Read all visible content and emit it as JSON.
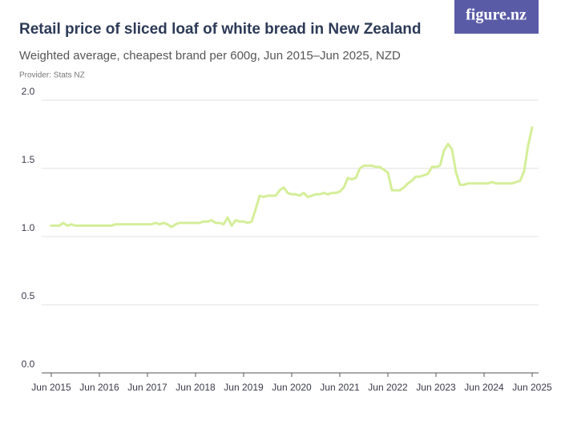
{
  "logo": "figure.nz",
  "chart_data": {
    "type": "line",
    "title": "Retail price of sliced loaf of white bread in New Zealand",
    "subtitle": "Weighted average, cheapest brand per 600g, Jun 2015–Jun 2025, NZD",
    "provider": "Provider: Stats NZ",
    "color": "#d4ee98",
    "grid": true,
    "ylim": [
      0,
      2
    ],
    "yticks": [
      {
        "value": 0,
        "label": "0.0"
      },
      0.5,
      {
        "value": 1,
        "label": "1.0"
      },
      1.5,
      {
        "value": 2,
        "label": "2.0"
      }
    ],
    "categories": [
      "Jun 2015",
      null,
      null,
      null,
      null,
      null,
      null,
      null,
      null,
      null,
      null,
      null,
      "Jun 2016",
      null,
      null,
      null,
      null,
      null,
      null,
      null,
      null,
      null,
      null,
      null,
      "Jun 2017",
      null,
      null,
      null,
      null,
      null,
      null,
      null,
      null,
      null,
      null,
      null,
      "Jun 2018",
      null,
      null,
      null,
      null,
      null,
      null,
      null,
      null,
      null,
      null,
      null,
      "Jun 2019",
      null,
      null,
      null,
      null,
      null,
      null,
      null,
      null,
      null,
      null,
      null,
      "Jun 2020",
      null,
      null,
      null,
      null,
      null,
      null,
      null,
      null,
      null,
      null,
      null,
      "Jun 2021",
      null,
      null,
      null,
      null,
      null,
      null,
      null,
      null,
      null,
      null,
      null,
      "Jun 2022",
      null,
      null,
      null,
      null,
      null,
      null,
      null,
      null,
      null,
      null,
      null,
      "Jun 2023",
      null,
      null,
      null,
      null,
      null,
      null,
      null,
      null,
      null,
      null,
      null,
      "Jun 2024",
      null,
      null,
      null,
      null,
      null,
      null,
      null,
      null,
      null,
      null,
      null,
      "Jun 2025"
    ],
    "values": [
      1.08,
      1.08,
      1.08,
      1.1,
      1.08,
      1.09,
      1.08,
      1.08,
      1.08,
      1.08,
      1.08,
      1.08,
      1.08,
      1.08,
      1.08,
      1.08,
      1.09,
      1.09,
      1.09,
      1.09,
      1.09,
      1.09,
      1.09,
      1.09,
      1.09,
      1.09,
      1.1,
      1.09,
      1.1,
      1.09,
      1.07,
      1.09,
      1.1,
      1.1,
      1.1,
      1.1,
      1.1,
      1.1,
      1.11,
      1.11,
      1.12,
      1.1,
      1.1,
      1.09,
      1.14,
      1.08,
      1.12,
      1.11,
      1.11,
      1.1,
      1.11,
      1.2,
      1.3,
      1.29,
      1.3,
      1.3,
      1.3,
      1.34,
      1.36,
      1.32,
      1.31,
      1.31,
      1.3,
      1.32,
      1.29,
      1.3,
      1.31,
      1.31,
      1.32,
      1.31,
      1.32,
      1.32,
      1.33,
      1.36,
      1.43,
      1.42,
      1.43,
      1.5,
      1.52,
      1.52,
      1.52,
      1.51,
      1.51,
      1.49,
      1.47,
      1.34,
      1.34,
      1.34,
      1.36,
      1.39,
      1.41,
      1.44,
      1.44,
      1.45,
      1.46,
      1.51,
      1.51,
      1.52,
      1.63,
      1.68,
      1.64,
      1.47,
      1.38,
      1.38,
      1.39,
      1.39,
      1.39,
      1.39,
      1.39,
      1.39,
      1.4,
      1.39,
      1.39,
      1.39,
      1.39,
      1.39,
      1.4,
      1.41,
      1.48,
      1.67,
      1.8
    ]
  }
}
